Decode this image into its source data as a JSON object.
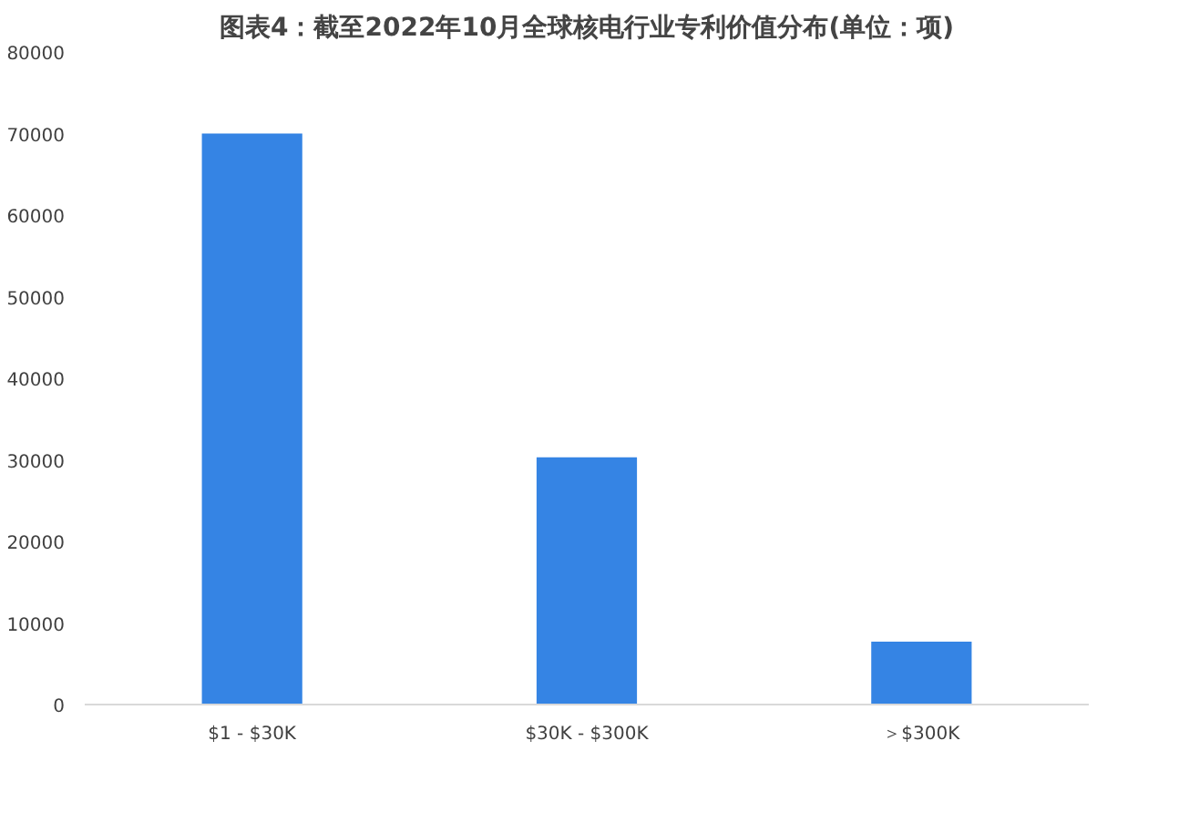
{
  "chart_data": {
    "type": "bar",
    "title": "图表4：截至2022年10月全球核电行业专利价值分布(单位：项)",
    "categories": [
      "$1 - $30K",
      "$30K - $300K",
      "＞$300K"
    ],
    "values": [
      70000,
      30300,
      7700
    ],
    "color": "#3584e4",
    "ylim": [
      0,
      80000
    ],
    "yticks": [
      0,
      10000,
      20000,
      30000,
      40000,
      50000,
      60000,
      70000,
      80000
    ],
    "grid": false
  }
}
